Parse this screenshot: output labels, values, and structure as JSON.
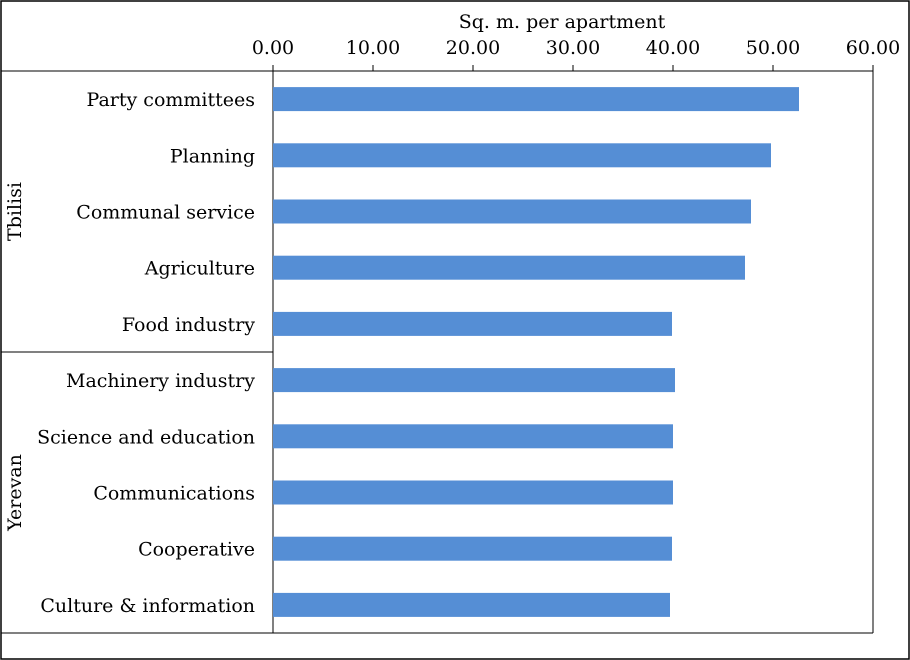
{
  "chart_data": {
    "type": "bar",
    "orientation": "horizontal",
    "xlabel": "Sq. m. per apartment",
    "xlabel_position": "top",
    "xlim": [
      0,
      60
    ],
    "xticks": [
      0,
      10,
      20,
      30,
      40,
      50,
      60
    ],
    "tick_labels": [
      "0.00",
      "10.00",
      "20.00",
      "30.00",
      "40.00",
      "50.00",
      "60.00"
    ],
    "grid": false,
    "bar_color": "#558ed5",
    "groups": [
      {
        "name": "Tbilisi",
        "categories": [
          "Party committees",
          "Planning",
          "Communal service",
          "Agriculture",
          "Food industry"
        ],
        "values": [
          52.6,
          49.8,
          47.8,
          47.2,
          39.9
        ]
      },
      {
        "name": "Yerevan",
        "categories": [
          "Machinery industry",
          "Science and education",
          "Communications",
          "Cooperative",
          "Culture & information"
        ],
        "values": [
          40.2,
          40.0,
          40.0,
          39.9,
          39.7
        ]
      }
    ]
  }
}
